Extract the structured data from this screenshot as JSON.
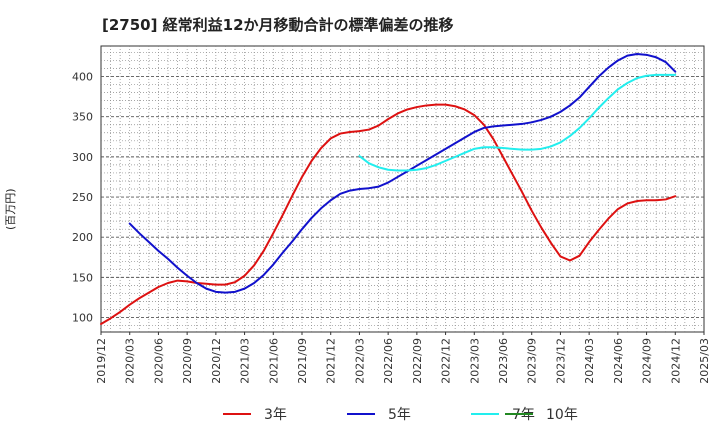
{
  "chart_data": {
    "type": "line",
    "title": "[2750]  経常利益12か月移動合計の標準偏差の推移",
    "ylabel": "(百万円)",
    "xlabel": "",
    "ylim": [
      82,
      438
    ],
    "y_ticks": [
      100,
      150,
      200,
      250,
      300,
      350,
      400
    ],
    "x_ticks": [
      "2019/12",
      "2020/03",
      "2020/06",
      "2020/09",
      "2020/12",
      "2021/03",
      "2021/06",
      "2021/09",
      "2021/12",
      "2022/03",
      "2022/06",
      "2022/09",
      "2022/12",
      "2023/03",
      "2023/06",
      "2023/09",
      "2023/12",
      "2024/03",
      "2024/06",
      "2024/09",
      "2024/12",
      "2025/03"
    ],
    "grid": true,
    "legend_position": "bottom",
    "series": [
      {
        "name": "3年",
        "color": "#dd1111",
        "points": [
          [
            "2019/12",
            92
          ],
          [
            "2020/01",
            99
          ],
          [
            "2020/02",
            107
          ],
          [
            "2020/03",
            116
          ],
          [
            "2020/04",
            124
          ],
          [
            "2020/05",
            131
          ],
          [
            "2020/06",
            138
          ],
          [
            "2020/07",
            143
          ],
          [
            "2020/08",
            146
          ],
          [
            "2020/09",
            145
          ],
          [
            "2020/10",
            143
          ],
          [
            "2020/11",
            142
          ],
          [
            "2020/12",
            141
          ],
          [
            "2021/01",
            141
          ],
          [
            "2021/02",
            144
          ],
          [
            "2021/03",
            152
          ],
          [
            "2021/04",
            165
          ],
          [
            "2021/05",
            183
          ],
          [
            "2021/06",
            205
          ],
          [
            "2021/07",
            228
          ],
          [
            "2021/08",
            252
          ],
          [
            "2021/09",
            275
          ],
          [
            "2021/10",
            295
          ],
          [
            "2021/11",
            311
          ],
          [
            "2021/12",
            323
          ],
          [
            "2022/01",
            329
          ],
          [
            "2022/02",
            331
          ],
          [
            "2022/03",
            332
          ],
          [
            "2022/04",
            334
          ],
          [
            "2022/05",
            339
          ],
          [
            "2022/06",
            347
          ],
          [
            "2022/07",
            354
          ],
          [
            "2022/08",
            359
          ],
          [
            "2022/09",
            362
          ],
          [
            "2022/10",
            364
          ],
          [
            "2022/11",
            365
          ],
          [
            "2022/12",
            365
          ],
          [
            "2023/01",
            363
          ],
          [
            "2023/02",
            359
          ],
          [
            "2023/03",
            352
          ],
          [
            "2023/04",
            340
          ],
          [
            "2023/05",
            322
          ],
          [
            "2023/06",
            300
          ],
          [
            "2023/07",
            278
          ],
          [
            "2023/08",
            256
          ],
          [
            "2023/09",
            233
          ],
          [
            "2023/10",
            212
          ],
          [
            "2023/11",
            193
          ],
          [
            "2023/12",
            176
          ],
          [
            "2024/01",
            171
          ],
          [
            "2024/02",
            177
          ],
          [
            "2024/03",
            194
          ],
          [
            "2024/04",
            209
          ],
          [
            "2024/05",
            223
          ],
          [
            "2024/06",
            235
          ],
          [
            "2024/07",
            242
          ],
          [
            "2024/08",
            245
          ],
          [
            "2024/09",
            246
          ],
          [
            "2024/10",
            246
          ],
          [
            "2024/11",
            247
          ],
          [
            "2024/12",
            251
          ]
        ]
      },
      {
        "name": "5年",
        "color": "#1111cc",
        "points": [
          [
            "2020/03",
            217
          ],
          [
            "2020/04",
            205
          ],
          [
            "2020/05",
            194
          ],
          [
            "2020/06",
            183
          ],
          [
            "2020/07",
            173
          ],
          [
            "2020/08",
            162
          ],
          [
            "2020/09",
            152
          ],
          [
            "2020/10",
            143
          ],
          [
            "2020/11",
            136
          ],
          [
            "2020/12",
            132
          ],
          [
            "2021/01",
            131
          ],
          [
            "2021/02",
            132
          ],
          [
            "2021/03",
            136
          ],
          [
            "2021/04",
            143
          ],
          [
            "2021/05",
            153
          ],
          [
            "2021/06",
            166
          ],
          [
            "2021/07",
            181
          ],
          [
            "2021/08",
            195
          ],
          [
            "2021/09",
            210
          ],
          [
            "2021/10",
            224
          ],
          [
            "2021/11",
            236
          ],
          [
            "2021/12",
            246
          ],
          [
            "2022/01",
            254
          ],
          [
            "2022/02",
            258
          ],
          [
            "2022/03",
            260
          ],
          [
            "2022/04",
            261
          ],
          [
            "2022/05",
            263
          ],
          [
            "2022/06",
            268
          ],
          [
            "2022/07",
            275
          ],
          [
            "2022/08",
            282
          ],
          [
            "2022/09",
            289
          ],
          [
            "2022/10",
            296
          ],
          [
            "2022/11",
            303
          ],
          [
            "2022/12",
            310
          ],
          [
            "2023/01",
            317
          ],
          [
            "2023/02",
            324
          ],
          [
            "2023/03",
            331
          ],
          [
            "2023/04",
            336
          ],
          [
            "2023/05",
            338
          ],
          [
            "2023/06",
            339
          ],
          [
            "2023/07",
            340
          ],
          [
            "2023/08",
            341
          ],
          [
            "2023/09",
            343
          ],
          [
            "2023/10",
            346
          ],
          [
            "2023/11",
            350
          ],
          [
            "2023/12",
            356
          ],
          [
            "2024/01",
            364
          ],
          [
            "2024/02",
            374
          ],
          [
            "2024/03",
            387
          ],
          [
            "2024/04",
            400
          ],
          [
            "2024/05",
            411
          ],
          [
            "2024/06",
            420
          ],
          [
            "2024/07",
            426
          ],
          [
            "2024/08",
            428
          ],
          [
            "2024/09",
            427
          ],
          [
            "2024/10",
            424
          ],
          [
            "2024/11",
            418
          ],
          [
            "2024/12",
            406
          ]
        ]
      },
      {
        "name": "7年",
        "color": "#22eeee",
        "points": [
          [
            "2022/03",
            301
          ],
          [
            "2022/04",
            292
          ],
          [
            "2022/05",
            287
          ],
          [
            "2022/06",
            284
          ],
          [
            "2022/07",
            283
          ],
          [
            "2022/08",
            283
          ],
          [
            "2022/09",
            284
          ],
          [
            "2022/10",
            286
          ],
          [
            "2022/11",
            290
          ],
          [
            "2022/12",
            295
          ],
          [
            "2023/01",
            300
          ],
          [
            "2023/02",
            305
          ],
          [
            "2023/03",
            310
          ],
          [
            "2023/04",
            312
          ],
          [
            "2023/05",
            312
          ],
          [
            "2023/06",
            311
          ],
          [
            "2023/07",
            310
          ],
          [
            "2023/08",
            309
          ],
          [
            "2023/09",
            309
          ],
          [
            "2023/10",
            310
          ],
          [
            "2023/11",
            313
          ],
          [
            "2023/12",
            318
          ],
          [
            "2024/01",
            326
          ],
          [
            "2024/02",
            336
          ],
          [
            "2024/03",
            348
          ],
          [
            "2024/04",
            361
          ],
          [
            "2024/05",
            373
          ],
          [
            "2024/06",
            384
          ],
          [
            "2024/07",
            392
          ],
          [
            "2024/08",
            398
          ],
          [
            "2024/09",
            401
          ],
          [
            "2024/10",
            402
          ],
          [
            "2024/11",
            402
          ],
          [
            "2024/12",
            402
          ]
        ]
      },
      {
        "name": "10年",
        "color": "#228822",
        "points": []
      }
    ]
  }
}
